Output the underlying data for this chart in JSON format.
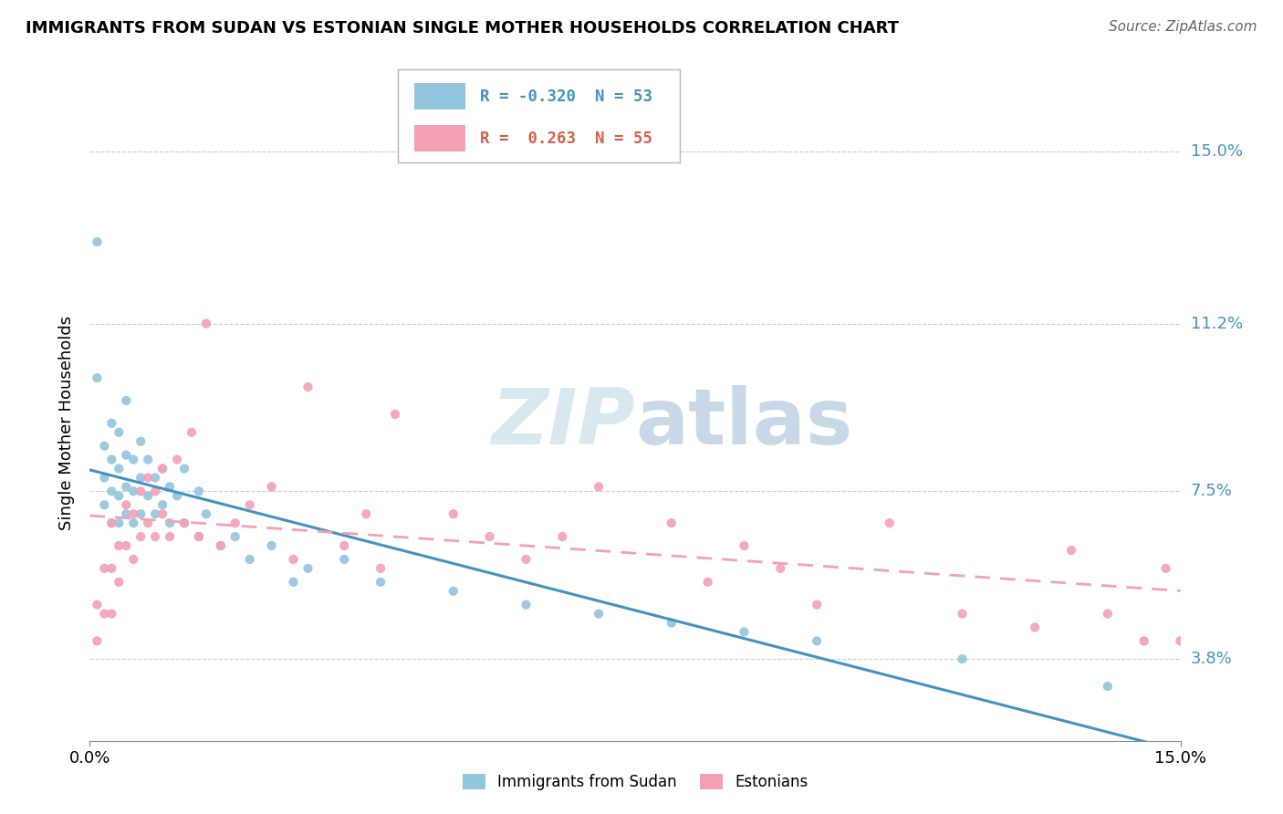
{
  "title": "IMMIGRANTS FROM SUDAN VS ESTONIAN SINGLE MOTHER HOUSEHOLDS CORRELATION CHART",
  "source": "Source: ZipAtlas.com",
  "ylabel": "Single Mother Households",
  "xlim": [
    0.0,
    0.15
  ],
  "ylim": [
    0.02,
    0.16
  ],
  "yticks": [
    0.038,
    0.075,
    0.112,
    0.15
  ],
  "ytick_labels": [
    "3.8%",
    "7.5%",
    "11.2%",
    "15.0%"
  ],
  "xtick_labels": [
    "0.0%",
    "15.0%"
  ],
  "legend_r1_val": "-0.320",
  "legend_n1_val": "53",
  "legend_r2_val": " 0.263",
  "legend_n2_val": "55",
  "color_blue": "#92c5de",
  "color_pink": "#f4a0b5",
  "color_blue_dark": "#4393c3",
  "color_pink_dark": "#d6604d",
  "line_blue": "#4393c3",
  "line_pink": "#f4a0b5",
  "watermark_zip": "ZIP",
  "watermark_atlas": "atlas",
  "scatter_blue_x": [
    0.001,
    0.001,
    0.002,
    0.002,
    0.002,
    0.003,
    0.003,
    0.003,
    0.003,
    0.004,
    0.004,
    0.004,
    0.004,
    0.005,
    0.005,
    0.005,
    0.005,
    0.006,
    0.006,
    0.006,
    0.007,
    0.007,
    0.007,
    0.008,
    0.008,
    0.009,
    0.009,
    0.01,
    0.01,
    0.011,
    0.011,
    0.012,
    0.013,
    0.013,
    0.015,
    0.015,
    0.016,
    0.018,
    0.02,
    0.022,
    0.025,
    0.028,
    0.03,
    0.035,
    0.04,
    0.05,
    0.06,
    0.07,
    0.08,
    0.09,
    0.1,
    0.12,
    0.14
  ],
  "scatter_blue_y": [
    0.13,
    0.1,
    0.085,
    0.078,
    0.072,
    0.09,
    0.082,
    0.075,
    0.068,
    0.088,
    0.08,
    0.074,
    0.068,
    0.095,
    0.083,
    0.076,
    0.07,
    0.082,
    0.075,
    0.068,
    0.086,
    0.078,
    0.07,
    0.082,
    0.074,
    0.078,
    0.07,
    0.08,
    0.072,
    0.076,
    0.068,
    0.074,
    0.08,
    0.068,
    0.075,
    0.065,
    0.07,
    0.063,
    0.065,
    0.06,
    0.063,
    0.055,
    0.058,
    0.06,
    0.055,
    0.053,
    0.05,
    0.048,
    0.046,
    0.044,
    0.042,
    0.038,
    0.032
  ],
  "scatter_pink_x": [
    0.001,
    0.001,
    0.002,
    0.002,
    0.003,
    0.003,
    0.003,
    0.004,
    0.004,
    0.005,
    0.005,
    0.006,
    0.006,
    0.007,
    0.007,
    0.008,
    0.008,
    0.009,
    0.009,
    0.01,
    0.01,
    0.011,
    0.012,
    0.013,
    0.014,
    0.015,
    0.016,
    0.018,
    0.02,
    0.022,
    0.025,
    0.028,
    0.03,
    0.035,
    0.038,
    0.04,
    0.042,
    0.05,
    0.055,
    0.06,
    0.065,
    0.07,
    0.08,
    0.085,
    0.09,
    0.095,
    0.1,
    0.11,
    0.12,
    0.13,
    0.135,
    0.14,
    0.145,
    0.148,
    0.15
  ],
  "scatter_pink_y": [
    0.05,
    0.042,
    0.058,
    0.048,
    0.068,
    0.058,
    0.048,
    0.063,
    0.055,
    0.072,
    0.063,
    0.07,
    0.06,
    0.075,
    0.065,
    0.078,
    0.068,
    0.075,
    0.065,
    0.08,
    0.07,
    0.065,
    0.082,
    0.068,
    0.088,
    0.065,
    0.112,
    0.063,
    0.068,
    0.072,
    0.076,
    0.06,
    0.098,
    0.063,
    0.07,
    0.058,
    0.092,
    0.07,
    0.065,
    0.06,
    0.065,
    0.076,
    0.068,
    0.055,
    0.063,
    0.058,
    0.05,
    0.068,
    0.048,
    0.045,
    0.062,
    0.048,
    0.042,
    0.058,
    0.042
  ]
}
